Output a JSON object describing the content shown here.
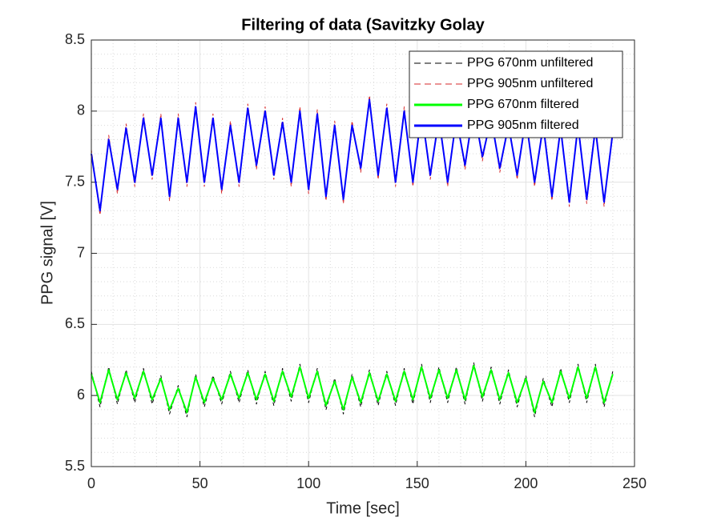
{
  "chart_data": {
    "type": "line",
    "title": "Filtering of data (Savitzky Golay",
    "xlabel": "Time [sec]",
    "ylabel": "PPG signal [V]",
    "xlim": [
      0,
      250
    ],
    "xticks": [
      0,
      50,
      100,
      150,
      200,
      250
    ],
    "ylim": [
      5.5,
      8.5
    ],
    "yticks": [
      5.5,
      6,
      6.5,
      7,
      7.5,
      8,
      8.5
    ],
    "grid": true,
    "minor_grid": true,
    "legend_location": "northeast",
    "x": [
      0,
      4,
      8,
      12,
      16,
      20,
      24,
      28,
      32,
      36,
      40,
      44,
      48,
      52,
      56,
      60,
      64,
      68,
      72,
      76,
      80,
      84,
      88,
      92,
      96,
      100,
      104,
      108,
      112,
      116,
      120,
      124,
      128,
      132,
      136,
      140,
      144,
      148,
      152,
      156,
      160,
      164,
      168,
      172,
      176,
      180,
      184,
      188,
      192,
      196,
      200,
      204,
      208,
      212,
      216,
      220,
      224,
      228,
      232,
      236,
      240
    ],
    "series": [
      {
        "name": "PPG 670nm unfiltered",
        "color": "#000000",
        "line_style": "--",
        "values": [
          6.17,
          5.92,
          6.2,
          5.94,
          6.18,
          5.95,
          6.19,
          5.94,
          6.14,
          5.87,
          6.07,
          5.85,
          6.15,
          5.92,
          6.14,
          5.94,
          6.17,
          5.95,
          6.18,
          5.94,
          6.17,
          5.93,
          6.19,
          5.96,
          6.22,
          5.95,
          6.19,
          5.9,
          6.12,
          5.87,
          6.15,
          5.92,
          6.18,
          5.93,
          6.17,
          5.93,
          6.19,
          5.94,
          6.22,
          5.95,
          6.2,
          5.95,
          6.2,
          5.94,
          6.23,
          5.96,
          6.2,
          5.94,
          6.18,
          5.92,
          6.14,
          5.85,
          6.12,
          5.92,
          6.19,
          5.95,
          6.22,
          5.95,
          6.22,
          5.92,
          6.17
        ]
      },
      {
        "name": "PPG 905nm unfiltered",
        "color": "#d62728",
        "line_style": "--",
        "values": [
          7.73,
          7.27,
          7.83,
          7.42,
          7.91,
          7.47,
          7.98,
          7.52,
          7.98,
          7.37,
          7.98,
          7.47,
          8.06,
          7.47,
          7.98,
          7.42,
          7.93,
          7.47,
          8.05,
          7.59,
          8.03,
          7.52,
          7.95,
          7.47,
          8.03,
          7.42,
          8.01,
          7.37,
          7.93,
          7.35,
          7.93,
          7.57,
          8.11,
          7.52,
          8.05,
          7.47,
          8.03,
          7.47,
          8.03,
          7.52,
          7.98,
          7.47,
          7.98,
          7.59,
          8.05,
          7.65,
          7.98,
          7.57,
          7.93,
          7.52,
          7.98,
          7.47,
          7.93,
          7.37,
          7.91,
          7.33,
          7.93,
          7.35,
          7.91,
          7.33,
          7.88
        ]
      },
      {
        "name": "PPG 670nm filtered",
        "color": "#00ff00",
        "line_style": "-",
        "values": [
          6.15,
          5.95,
          6.18,
          5.97,
          6.16,
          5.98,
          6.17,
          5.97,
          6.12,
          5.9,
          6.05,
          5.88,
          6.13,
          5.95,
          6.12,
          5.97,
          6.15,
          5.98,
          6.16,
          5.97,
          6.15,
          5.96,
          6.17,
          5.99,
          6.2,
          5.98,
          6.17,
          5.93,
          6.1,
          5.9,
          6.13,
          5.95,
          6.16,
          5.96,
          6.15,
          5.96,
          6.17,
          5.97,
          6.2,
          5.98,
          6.18,
          5.98,
          6.18,
          5.97,
          6.21,
          5.99,
          6.18,
          5.97,
          6.16,
          5.95,
          6.12,
          5.88,
          6.1,
          5.95,
          6.17,
          5.98,
          6.2,
          5.98,
          6.2,
          5.95,
          6.15
        ]
      },
      {
        "name": "PPG 905nm filtered",
        "color": "#0000ff",
        "line_style": "-",
        "values": [
          7.7,
          7.3,
          7.8,
          7.45,
          7.88,
          7.5,
          7.95,
          7.55,
          7.95,
          7.4,
          7.95,
          7.5,
          8.03,
          7.5,
          7.95,
          7.45,
          7.9,
          7.5,
          8.02,
          7.62,
          8.0,
          7.55,
          7.92,
          7.5,
          8.0,
          7.45,
          7.98,
          7.4,
          7.9,
          7.38,
          7.9,
          7.6,
          8.08,
          7.55,
          8.02,
          7.5,
          8.0,
          7.5,
          8.0,
          7.55,
          7.95,
          7.5,
          7.95,
          7.62,
          8.02,
          7.68,
          7.95,
          7.6,
          7.9,
          7.55,
          7.95,
          7.5,
          7.9,
          7.4,
          7.88,
          7.36,
          7.9,
          7.38,
          7.88,
          7.36,
          7.85
        ]
      }
    ]
  }
}
